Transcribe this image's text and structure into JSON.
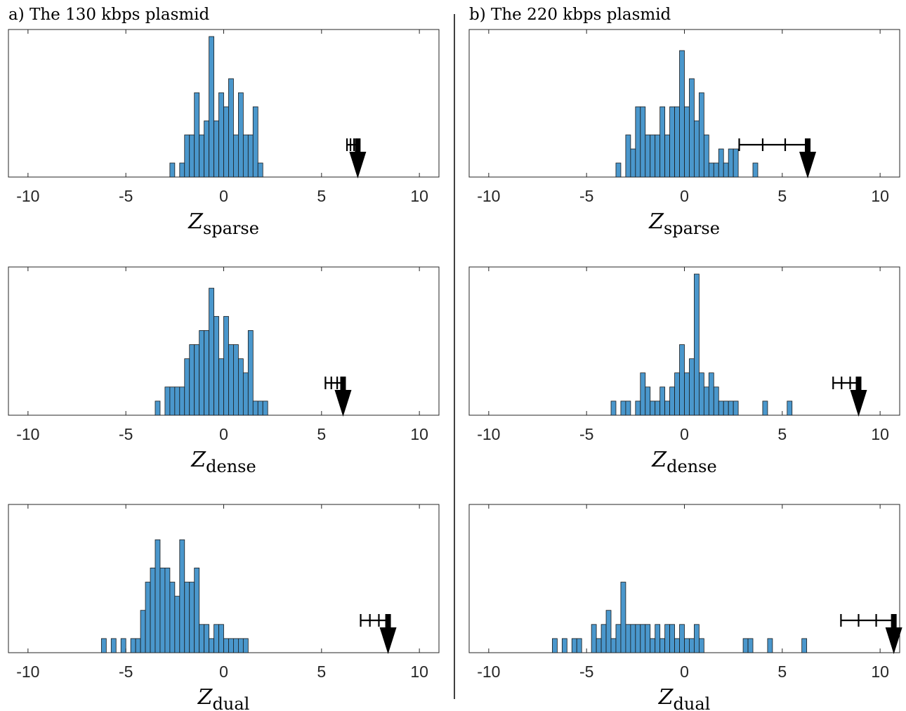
{
  "panels": [
    {
      "title": "a) The 130 kbps plasmid"
    },
    {
      "title": "b) The 220 kbps plasmid"
    }
  ],
  "chart_data": [
    {
      "type": "bar",
      "panel": "a) The 130 kbps plasmid",
      "xlabel": "Z",
      "xlabel_sub": "sparse",
      "xlim": [
        -11,
        11
      ],
      "xticks": [
        -10,
        -5,
        0,
        5,
        10
      ],
      "xtick_labels": [
        "-10",
        "-5",
        "0",
        "5",
        "10"
      ],
      "bin_width": 0.25,
      "ymax": 10.5,
      "bins": [
        [
          -2.75,
          1
        ],
        [
          -2.25,
          1
        ],
        [
          -2.0,
          3
        ],
        [
          -1.75,
          3
        ],
        [
          -1.5,
          6
        ],
        [
          -1.25,
          3
        ],
        [
          -1.0,
          4
        ],
        [
          -0.75,
          10
        ],
        [
          -0.5,
          4
        ],
        [
          -0.25,
          6
        ],
        [
          0.0,
          5
        ],
        [
          0.25,
          7
        ],
        [
          0.5,
          3
        ],
        [
          0.75,
          6
        ],
        [
          1.0,
          3
        ],
        [
          1.25,
          3
        ],
        [
          1.5,
          5
        ],
        [
          1.75,
          1
        ]
      ],
      "value": 6.85,
      "errorbar": {
        "low": 6.3,
        "high": 6.85,
        "ticks": [
          6.3,
          6.48,
          6.66,
          6.85
        ]
      }
    },
    {
      "type": "bar",
      "panel": "a) The 130 kbps plasmid",
      "xlabel": "Z",
      "xlabel_sub": "dense",
      "xlim": [
        -11,
        11
      ],
      "xticks": [
        -10,
        -5,
        0,
        5,
        10
      ],
      "xtick_labels": [
        "-10",
        "-5",
        "0",
        "5",
        "10"
      ],
      "bin_width": 0.25,
      "ymax": 10.5,
      "bins": [
        [
          -3.5,
          1
        ],
        [
          -3.0,
          2
        ],
        [
          -2.75,
          2
        ],
        [
          -2.5,
          2
        ],
        [
          -2.25,
          2
        ],
        [
          -2.0,
          4
        ],
        [
          -1.75,
          5
        ],
        [
          -1.5,
          5
        ],
        [
          -1.25,
          6
        ],
        [
          -1.0,
          6
        ],
        [
          -0.75,
          9
        ],
        [
          -0.5,
          7
        ],
        [
          -0.25,
          4
        ],
        [
          0.0,
          7
        ],
        [
          0.25,
          5
        ],
        [
          0.5,
          5
        ],
        [
          0.75,
          4
        ],
        [
          1.0,
          3
        ],
        [
          1.25,
          6
        ],
        [
          1.5,
          1
        ],
        [
          1.75,
          1
        ],
        [
          2.0,
          1
        ]
      ],
      "value": 6.1,
      "errorbar": {
        "low": 5.2,
        "high": 6.1,
        "ticks": [
          5.2,
          5.5,
          5.8,
          6.1
        ]
      }
    },
    {
      "type": "bar",
      "panel": "a) The 130 kbps plasmid",
      "xlabel": "Z",
      "xlabel_sub": "dual",
      "xlim": [
        -11,
        11
      ],
      "xticks": [
        -10,
        -5,
        0,
        5,
        10
      ],
      "xtick_labels": [
        "-10",
        "-5",
        "0",
        "5",
        "10"
      ],
      "bin_width": 0.25,
      "ymax": 10.5,
      "bins": [
        [
          -6.25,
          1
        ],
        [
          -5.75,
          1
        ],
        [
          -5.25,
          1
        ],
        [
          -4.75,
          1
        ],
        [
          -4.5,
          1
        ],
        [
          -4.25,
          3
        ],
        [
          -4.0,
          5
        ],
        [
          -3.75,
          6
        ],
        [
          -3.5,
          8
        ],
        [
          -3.25,
          6
        ],
        [
          -3.0,
          6
        ],
        [
          -2.75,
          5
        ],
        [
          -2.5,
          4
        ],
        [
          -2.25,
          8
        ],
        [
          -2.0,
          5
        ],
        [
          -1.75,
          5
        ],
        [
          -1.5,
          6
        ],
        [
          -1.25,
          2
        ],
        [
          -1.0,
          2
        ],
        [
          -0.75,
          1
        ],
        [
          -0.5,
          2
        ],
        [
          -0.25,
          2
        ],
        [
          0.0,
          1
        ],
        [
          0.25,
          1
        ],
        [
          0.5,
          1
        ],
        [
          0.75,
          1
        ],
        [
          1.0,
          1
        ]
      ],
      "value": 8.4,
      "errorbar": {
        "low": 7.0,
        "high": 8.4,
        "ticks": [
          7.0,
          7.47,
          7.93,
          8.4
        ]
      }
    },
    {
      "type": "bar",
      "panel": "b) The 220 kbps plasmid",
      "xlabel": "Z",
      "xlabel_sub": "sparse",
      "xlim": [
        -11,
        11
      ],
      "xticks": [
        -10,
        -5,
        0,
        5,
        10
      ],
      "xtick_labels": [
        "-10",
        "-5",
        "0",
        "5",
        "10"
      ],
      "bin_width": 0.25,
      "ymax": 10.5,
      "bins": [
        [
          -3.5,
          1
        ],
        [
          -3.0,
          3
        ],
        [
          -2.75,
          2
        ],
        [
          -2.5,
          5
        ],
        [
          -2.25,
          5
        ],
        [
          -2.0,
          3
        ],
        [
          -1.75,
          3
        ],
        [
          -1.5,
          3
        ],
        [
          -1.25,
          5
        ],
        [
          -1.0,
          3
        ],
        [
          -0.75,
          5
        ],
        [
          -0.5,
          5
        ],
        [
          -0.25,
          9
        ],
        [
          0.0,
          5
        ],
        [
          0.25,
          7
        ],
        [
          0.5,
          4
        ],
        [
          0.75,
          6
        ],
        [
          1.0,
          3
        ],
        [
          1.25,
          1
        ],
        [
          1.5,
          1
        ],
        [
          1.75,
          2
        ],
        [
          2.0,
          1
        ],
        [
          2.25,
          2
        ],
        [
          2.5,
          2
        ],
        [
          3.5,
          1
        ]
      ],
      "value": 6.3,
      "errorbar": {
        "low": 2.8,
        "high": 6.3,
        "ticks": [
          2.8,
          4.0,
          5.15,
          6.3
        ]
      }
    },
    {
      "type": "bar",
      "panel": "b) The 220 kbps plasmid",
      "xlabel": "Z",
      "xlabel_sub": "dense",
      "xlim": [
        -11,
        11
      ],
      "xticks": [
        -10,
        -5,
        0,
        5,
        10
      ],
      "xtick_labels": [
        "-10",
        "-5",
        "0",
        "5",
        "10"
      ],
      "bin_width": 0.25,
      "ymax": 10.5,
      "bins": [
        [
          -3.75,
          1
        ],
        [
          -3.25,
          1
        ],
        [
          -3.0,
          1
        ],
        [
          -2.5,
          1
        ],
        [
          -2.25,
          3
        ],
        [
          -2.0,
          2
        ],
        [
          -1.75,
          1
        ],
        [
          -1.5,
          1
        ],
        [
          -1.25,
          2
        ],
        [
          -1.0,
          1
        ],
        [
          -0.75,
          2
        ],
        [
          -0.5,
          3
        ],
        [
          -0.25,
          5
        ],
        [
          0.0,
          3
        ],
        [
          0.25,
          4
        ],
        [
          0.5,
          10
        ],
        [
          0.75,
          3
        ],
        [
          1.0,
          2
        ],
        [
          1.25,
          3
        ],
        [
          1.5,
          2
        ],
        [
          1.75,
          1
        ],
        [
          2.0,
          1
        ],
        [
          2.25,
          1
        ],
        [
          2.5,
          1
        ],
        [
          4.0,
          1
        ],
        [
          5.25,
          1
        ]
      ],
      "value": 8.9,
      "errorbar": {
        "low": 7.6,
        "high": 8.9,
        "ticks": [
          7.6,
          8.03,
          8.47,
          8.9
        ]
      }
    },
    {
      "type": "bar",
      "panel": "b) The 220 kbps plasmid",
      "xlabel": "Z",
      "xlabel_sub": "dual",
      "xlim": [
        -11,
        11
      ],
      "xticks": [
        -10,
        -5,
        0,
        5,
        10
      ],
      "xtick_labels": [
        "-10",
        "-5",
        "0",
        "5",
        "10"
      ],
      "bin_width": 0.25,
      "ymax": 10.5,
      "bins": [
        [
          -6.75,
          1
        ],
        [
          -6.25,
          1
        ],
        [
          -5.75,
          1
        ],
        [
          -5.5,
          1
        ],
        [
          -4.75,
          2
        ],
        [
          -4.5,
          1
        ],
        [
          -4.25,
          2
        ],
        [
          -4.0,
          3
        ],
        [
          -3.75,
          1
        ],
        [
          -3.5,
          2
        ],
        [
          -3.25,
          5
        ],
        [
          -3.0,
          2
        ],
        [
          -2.75,
          2
        ],
        [
          -2.5,
          2
        ],
        [
          -2.25,
          2
        ],
        [
          -2.0,
          2
        ],
        [
          -1.75,
          1
        ],
        [
          -1.5,
          2
        ],
        [
          -1.25,
          1
        ],
        [
          -1.0,
          2
        ],
        [
          -0.75,
          2
        ],
        [
          -0.5,
          1
        ],
        [
          -0.25,
          2
        ],
        [
          0.0,
          1
        ],
        [
          0.25,
          1
        ],
        [
          0.5,
          2
        ],
        [
          0.75,
          1
        ],
        [
          3.0,
          1
        ],
        [
          3.25,
          1
        ],
        [
          4.25,
          1
        ],
        [
          6.0,
          1
        ]
      ],
      "value": 10.7,
      "errorbar": {
        "low": 8.0,
        "high": 10.7,
        "ticks": [
          8.0,
          8.9,
          9.8,
          10.7
        ]
      }
    }
  ]
}
